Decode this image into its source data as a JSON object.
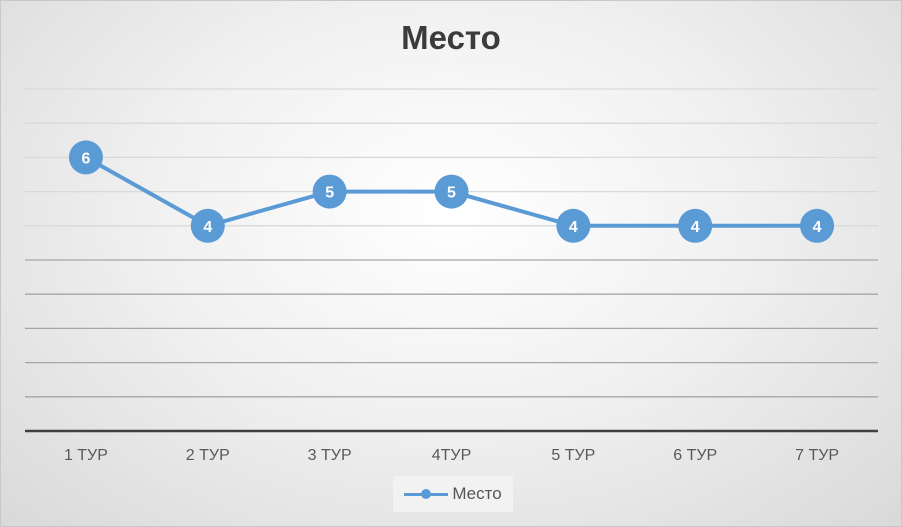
{
  "chart_data": {
    "type": "line",
    "title": "Место",
    "categories": [
      "1 ТУР",
      "2 ТУР",
      "3 ТУР",
      "4ТУР",
      "5 ТУР",
      "6 ТУР",
      "7 ТУР"
    ],
    "series": [
      {
        "name": "Место",
        "values": [
          6,
          4,
          5,
          5,
          4,
          4,
          4
        ]
      }
    ],
    "ylim": [
      -2,
      8
    ],
    "grid": true,
    "data_labels": true,
    "legend": "bottom",
    "colors": {
      "series": "#5b9bd5",
      "gridline": "#bfbfbf",
      "axis": "#404040",
      "label_text": "#ffffff"
    }
  }
}
